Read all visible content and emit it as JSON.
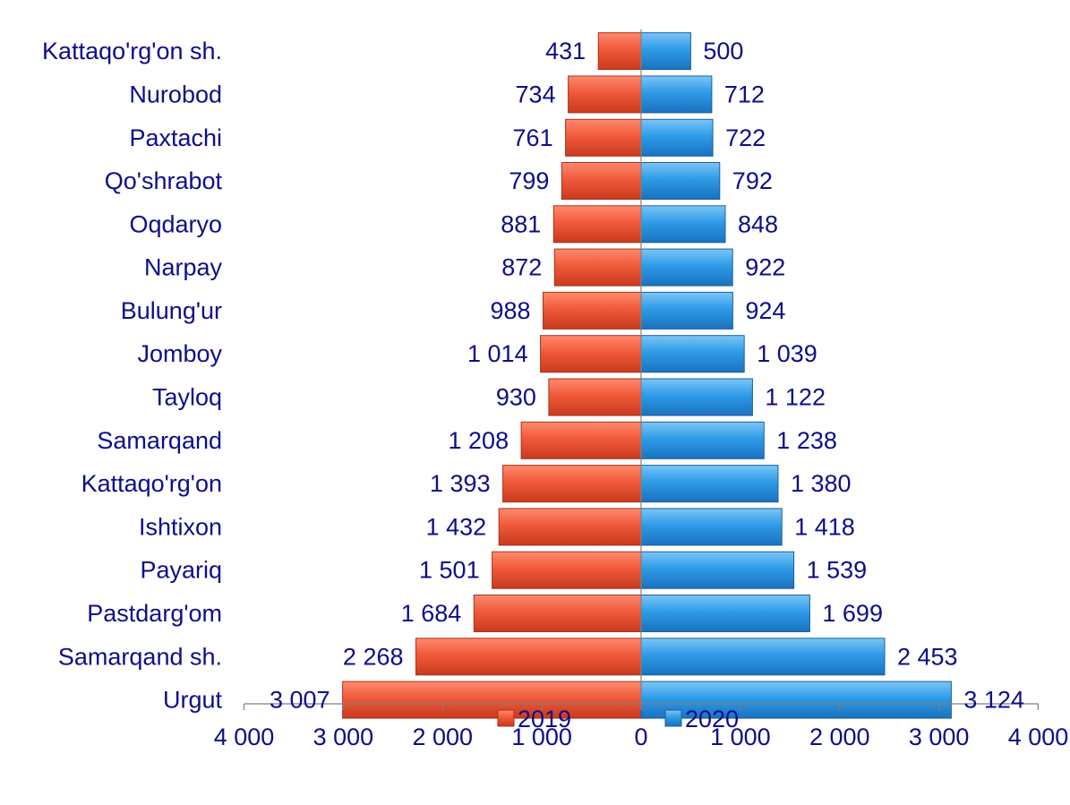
{
  "colors": {
    "series_2019": "#f05a3a",
    "series_2020": "#2e9be8",
    "text": "#0d0d8c",
    "axis": "#7f7f7f"
  },
  "chart_data": {
    "type": "bar",
    "orientation": "horizontal",
    "layout": "butterfly",
    "categories": [
      "Kattaqo'rg'on sh.",
      "Nurobod",
      "Paxtachi",
      "Qo'shrabot",
      "Oqdaryo",
      "Narpay",
      "Bulung'ur",
      "Jomboy",
      "Tayloq",
      "Samarqand",
      "Kattaqo'rg'on",
      "Ishtixon",
      "Payariq",
      "Pastdarg'om",
      "Samarqand sh.",
      "Urgut"
    ],
    "series": [
      {
        "name": "2019",
        "side": "left",
        "values": [
          431,
          734,
          761,
          799,
          881,
          872,
          988,
          1014,
          930,
          1208,
          1393,
          1432,
          1501,
          1684,
          2268,
          3007
        ],
        "labels": [
          "431",
          "734",
          "761",
          "799",
          "881",
          "872",
          "988",
          "1 014",
          "930",
          "1 208",
          "1 393",
          "1 432",
          "1 501",
          "1 684",
          "2 268",
          "3 007"
        ]
      },
      {
        "name": "2020",
        "side": "right",
        "values": [
          500,
          712,
          722,
          792,
          848,
          922,
          924,
          1039,
          1122,
          1238,
          1380,
          1418,
          1539,
          1699,
          2453,
          3124
        ],
        "labels": [
          "500",
          "712",
          "722",
          "792",
          "848",
          "922",
          "924",
          "1 039",
          "1 122",
          "1 238",
          "1 380",
          "1 418",
          "1 539",
          "1 699",
          "2 453",
          "3 124"
        ]
      }
    ],
    "xlim": [
      -4000,
      4000
    ],
    "xticks": [
      -4000,
      -3000,
      -2000,
      -1000,
      0,
      1000,
      2000,
      3000,
      4000
    ],
    "xtick_labels": [
      "4 000",
      "3 000",
      "2 000",
      "1 000",
      "0",
      "1 000",
      "2 000",
      "3 000",
      "4 000"
    ],
    "legend": {
      "position": "bottom",
      "entries": [
        "2019",
        "2020"
      ]
    },
    "grid": false,
    "title": "",
    "xlabel": "",
    "ylabel": ""
  }
}
